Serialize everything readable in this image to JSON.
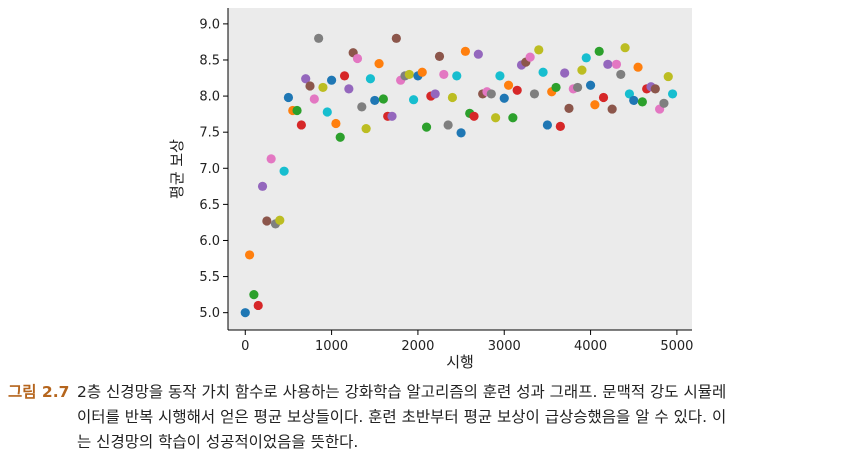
{
  "chart_data": {
    "type": "scatter",
    "xlabel": "시행",
    "ylabel": "평균 보상",
    "xlim": [
      -200,
      5175
    ],
    "ylim": [
      4.76,
      9.22
    ],
    "xticks": [
      0,
      1000,
      2000,
      3000,
      4000,
      5000
    ],
    "yticks": [
      {
        "value": 5,
        "label": "5.0"
      },
      5.5,
      {
        "value": 6,
        "label": "6.0"
      },
      6.5,
      {
        "value": 7,
        "label": "7.0"
      },
      7.5,
      {
        "value": 8,
        "label": "8.0"
      },
      8.5,
      {
        "value": 9,
        "label": "9.0"
      }
    ],
    "background": "#ebebeb",
    "palette": [
      "#1f77b4",
      "#ff7f0e",
      "#2ca02c",
      "#d62728",
      "#9467bd",
      "#8c564b",
      "#e377c2",
      "#7f7f7f",
      "#bcbd22",
      "#17becf"
    ],
    "x": [
      0,
      50,
      100,
      150,
      200,
      250,
      300,
      350,
      400,
      450,
      500,
      550,
      600,
      650,
      700,
      750,
      800,
      850,
      900,
      950,
      1000,
      1050,
      1100,
      1150,
      1200,
      1250,
      1300,
      1350,
      1400,
      1450,
      1500,
      1550,
      1600,
      1650,
      1700,
      1750,
      1800,
      1850,
      1900,
      1950,
      2000,
      2050,
      2100,
      2150,
      2200,
      2250,
      2300,
      2350,
      2400,
      2450,
      2500,
      2550,
      2600,
      2650,
      2700,
      2750,
      2800,
      2850,
      2900,
      2950,
      3000,
      3050,
      3100,
      3150,
      3200,
      3250,
      3300,
      3350,
      3400,
      3450,
      3500,
      3550,
      3600,
      3650,
      3700,
      3750,
      3800,
      3850,
      3900,
      3950,
      4000,
      4050,
      4100,
      4150,
      4200,
      4250,
      4300,
      4350,
      4400,
      4450,
      4500,
      4550,
      4600,
      4650,
      4700,
      4750,
      4800,
      4850,
      4900,
      4950
    ],
    "values": [
      5.0,
      5.8,
      5.25,
      5.1,
      6.75,
      6.27,
      7.13,
      6.23,
      6.28,
      6.96,
      7.98,
      7.8,
      7.8,
      7.6,
      8.24,
      8.14,
      7.96,
      8.8,
      8.12,
      7.78,
      8.22,
      7.62,
      7.43,
      8.28,
      8.1,
      8.6,
      8.52,
      7.85,
      7.55,
      8.24,
      7.94,
      8.45,
      7.96,
      7.72,
      7.72,
      8.8,
      8.22,
      8.28,
      8.3,
      7.95,
      8.28,
      8.33,
      7.57,
      8.0,
      8.03,
      8.55,
      8.3,
      7.6,
      7.98,
      8.28,
      7.49,
      8.62,
      7.76,
      7.72,
      8.58,
      8.03,
      8.06,
      8.03,
      7.7,
      8.28,
      7.97,
      8.15,
      7.7,
      8.08,
      8.43,
      8.47,
      8.54,
      8.03,
      8.64,
      8.33,
      7.6,
      8.06,
      8.12,
      7.58,
      8.32,
      7.83,
      8.1,
      8.12,
      8.36,
      8.53,
      8.15,
      7.88,
      8.62,
      7.98,
      8.44,
      7.82,
      8.44,
      8.3,
      8.67,
      8.03,
      7.94,
      8.4,
      7.92,
      8.1,
      8.13,
      8.1,
      7.82,
      7.9,
      8.27,
      8.03
    ]
  },
  "caption": {
    "label": "그림 2.7",
    "lines": [
      "2층 신경망을 동작 가치 함수로 사용하는 강화학습 알고리즘의 훈련 성과 그래프. 문맥적 강도 시뮬레",
      "이터를 반복 시행해서 얻은 평균 보상들이다. 훈련 초반부터 평균 보상이 급상승했음을 알 수 있다. 이",
      "는 신경망의 학습이 성공적이었음을 뜻한다."
    ]
  }
}
